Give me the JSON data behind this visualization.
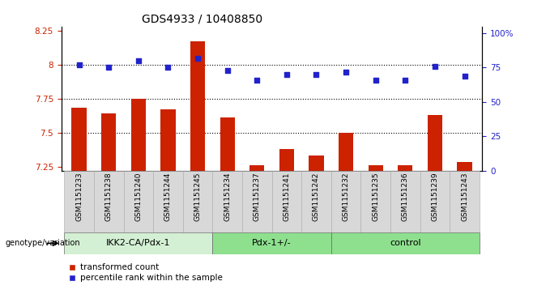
{
  "title": "GDS4933 / 10408850",
  "samples": [
    "GSM1151233",
    "GSM1151238",
    "GSM1151240",
    "GSM1151244",
    "GSM1151245",
    "GSM1151234",
    "GSM1151237",
    "GSM1151241",
    "GSM1151242",
    "GSM1151232",
    "GSM1151235",
    "GSM1151236",
    "GSM1151239",
    "GSM1151243"
  ],
  "red_values": [
    7.68,
    7.64,
    7.75,
    7.67,
    8.17,
    7.61,
    7.26,
    7.38,
    7.33,
    7.5,
    7.26,
    7.26,
    7.63,
    7.28
  ],
  "blue_values": [
    77,
    75,
    80,
    75,
    82,
    73,
    66,
    70,
    70,
    72,
    66,
    66,
    76,
    69
  ],
  "groups": [
    {
      "label": "IKK2-CA/Pdx-1",
      "start": 0,
      "end": 5,
      "color": "#d4f0d4"
    },
    {
      "label": "Pdx-1+/-",
      "start": 5,
      "end": 9,
      "color": "#8ee08e"
    },
    {
      "label": "control",
      "start": 9,
      "end": 14,
      "color": "#8ee08e"
    }
  ],
  "ylim_left": [
    7.22,
    8.28
  ],
  "ylim_right": [
    0,
    105
  ],
  "yticks_left": [
    7.25,
    7.5,
    7.75,
    8.0,
    8.25
  ],
  "ytick_labels_left": [
    "7.25",
    "7.5",
    "7.75",
    "8",
    "8.25"
  ],
  "yticks_right": [
    0,
    25,
    50,
    75,
    100
  ],
  "ytick_labels_right": [
    "0",
    "25",
    "50",
    "75",
    "100%"
  ],
  "hlines": [
    7.5,
    7.75,
    8.0
  ],
  "bar_color": "#cc2200",
  "dot_color": "#2222cc",
  "baseline": 7.22,
  "dot_size": 20,
  "bar_width": 0.5,
  "legend_red": "transformed count",
  "legend_blue": "percentile rank within the sample",
  "genotype_label": "genotype/variation",
  "title_fontsize": 10,
  "tick_fontsize": 7.5,
  "sample_label_fontsize": 6.5,
  "group_label_fontsize": 8,
  "legend_fontsize": 7.5
}
